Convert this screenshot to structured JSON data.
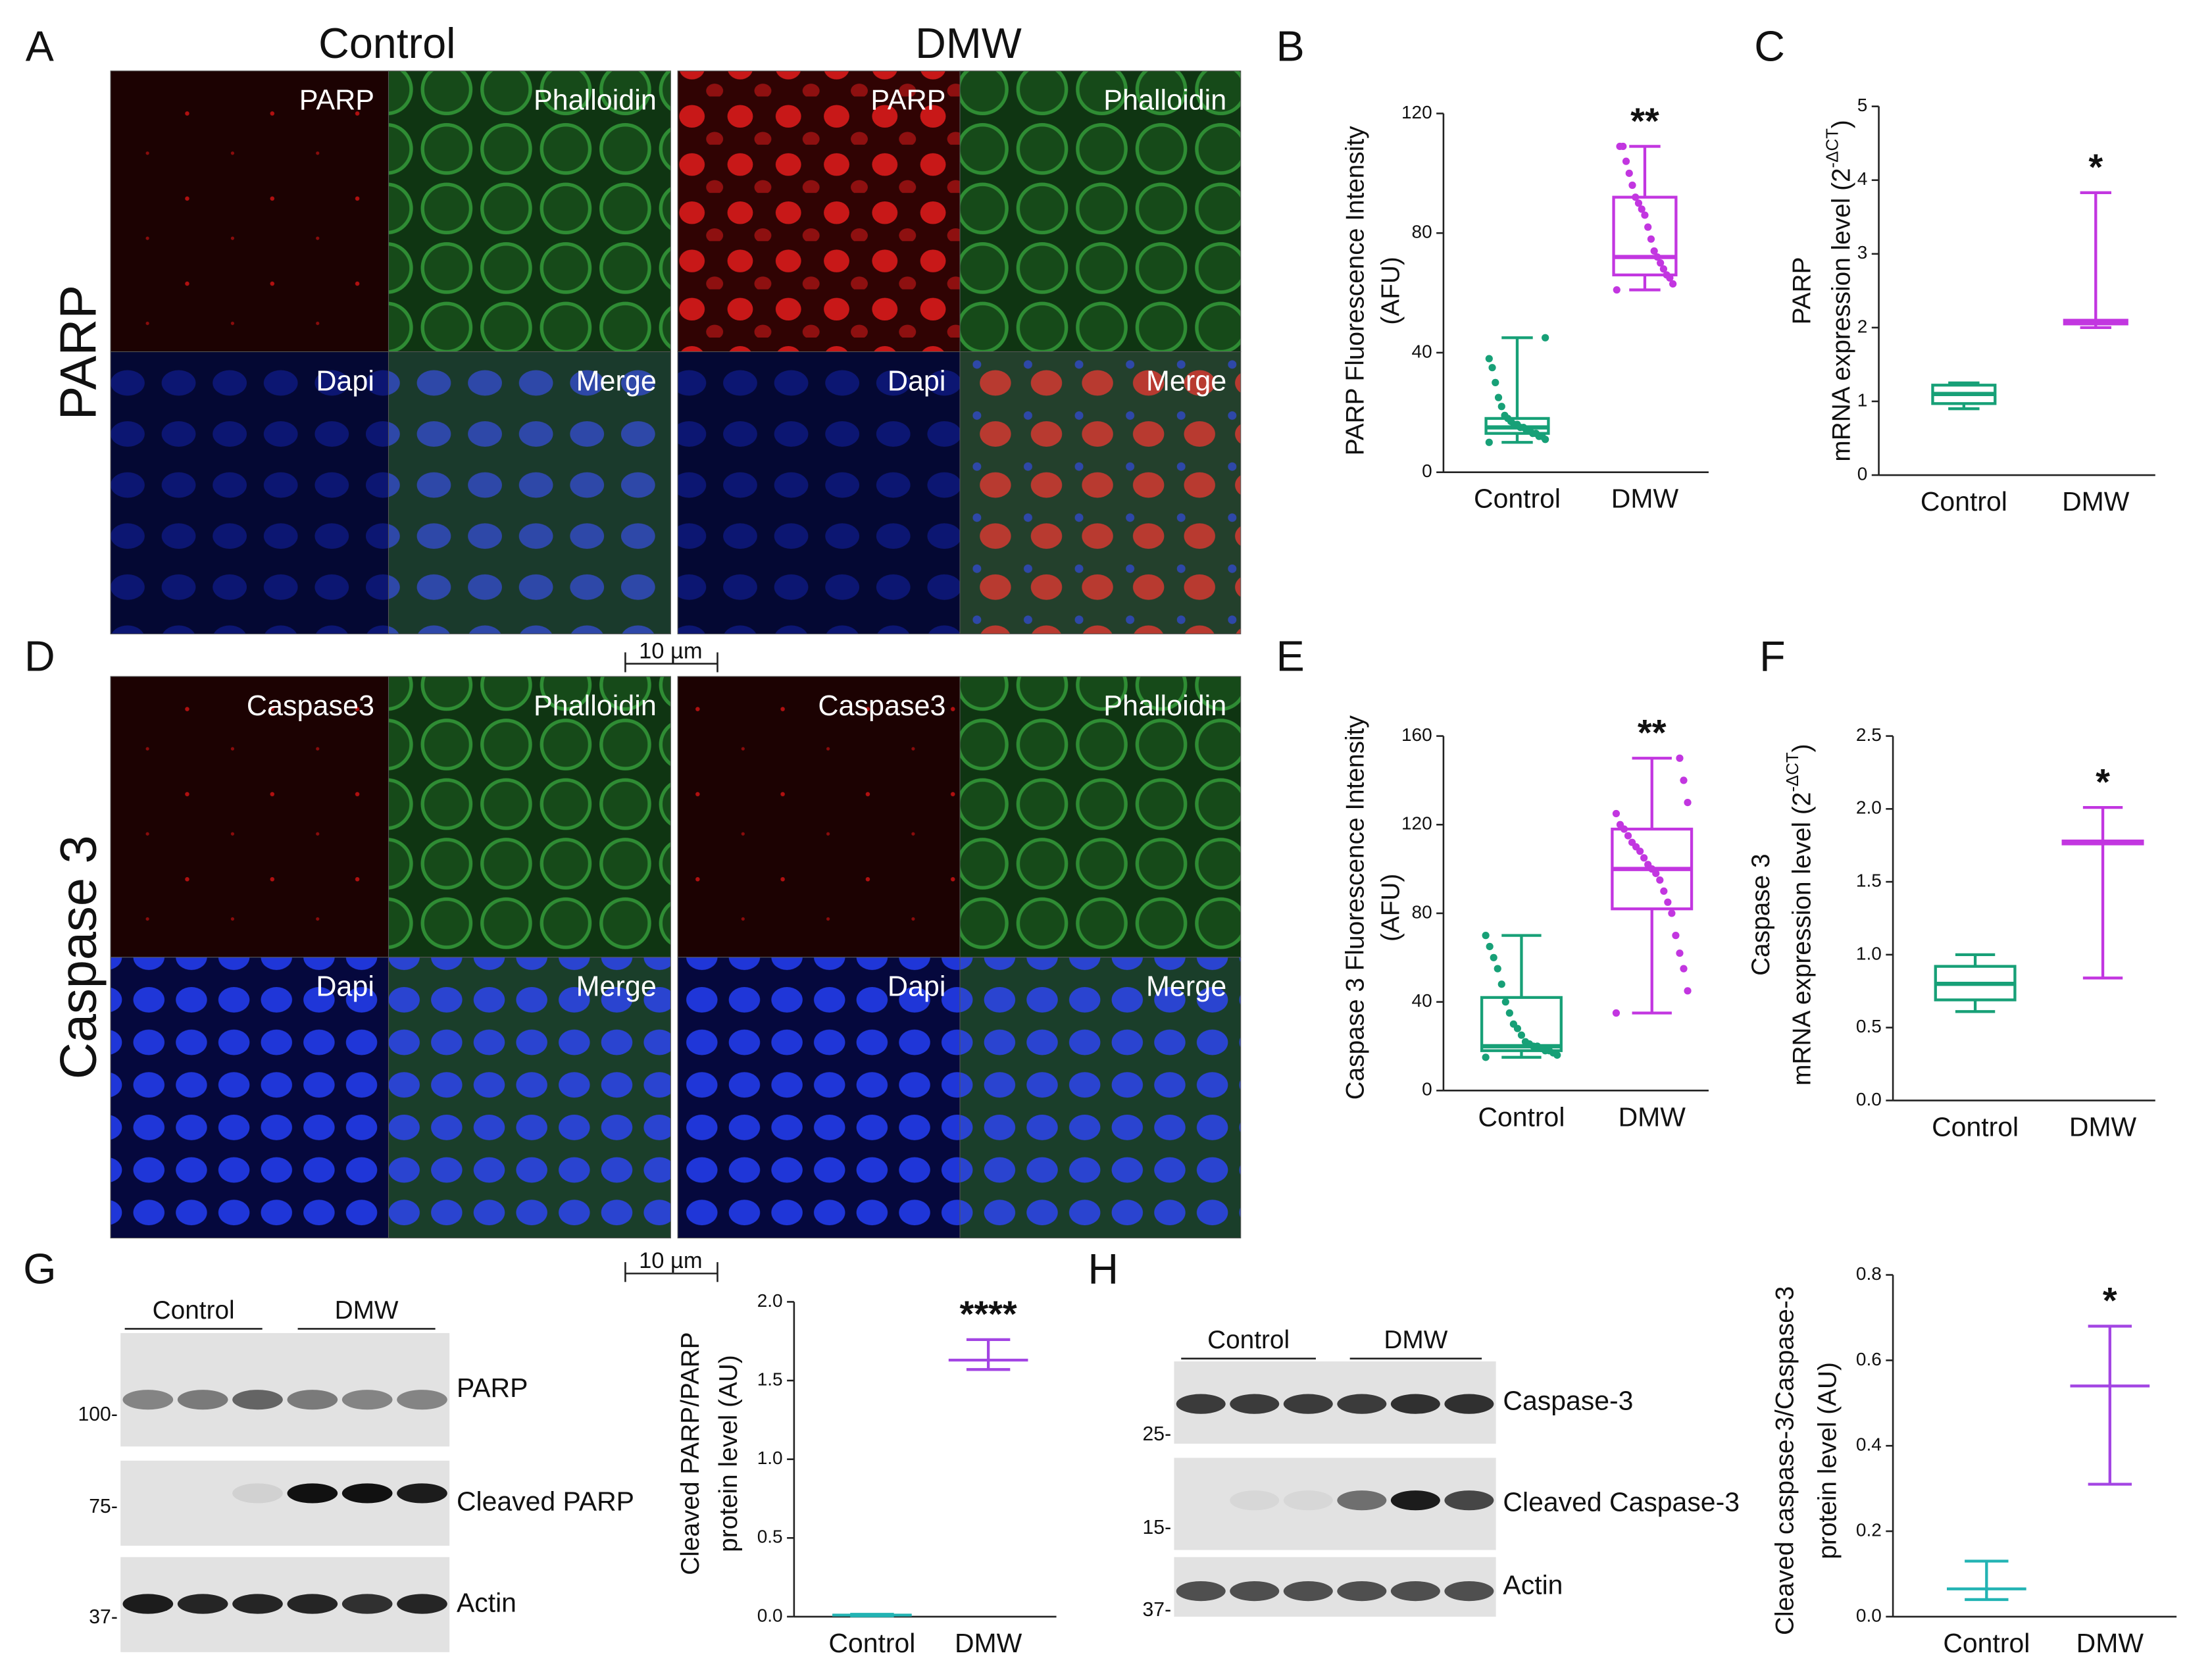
{
  "panel_letters": [
    "A",
    "B",
    "C",
    "D",
    "E",
    "F",
    "G",
    "H"
  ],
  "conditions": [
    "Control",
    "DMW"
  ],
  "micrographs": [
    {
      "label": "PARP",
      "panels": [
        [
          "PARP",
          "Phalloidin",
          "Dapi",
          "Merge"
        ],
        [
          "PARP",
          "Phalloidin",
          "Dapi",
          "Merge"
        ]
      ]
    },
    {
      "label": "Caspase 3",
      "panels": [
        [
          "Caspase3",
          "Phalloidin",
          "Dapi",
          "Merge"
        ],
        [
          "Caspase3",
          "Phalloidin",
          "Dapi",
          "Merge"
        ]
      ]
    }
  ],
  "scale_bar_label": "10 µm",
  "blots": [
    {
      "groups": [
        "Control",
        "DMW"
      ],
      "bands": [
        "PARP",
        "Cleaved PARP",
        "Actin"
      ],
      "markers": [
        "100-",
        "75-",
        "37-"
      ]
    },
    {
      "groups": [
        "Control",
        "DMW"
      ],
      "bands": [
        "Caspase-3",
        "Cleaved Caspase-3",
        "Actin"
      ],
      "markers": [
        "25-",
        "15-",
        "37-"
      ]
    }
  ],
  "chart_data": [
    {
      "type": "box",
      "y_label": [
        "PARP Fluorescence Intensity",
        "(AFU)"
      ],
      "categories": [
        "Control",
        "DMW"
      ],
      "ylim": [
        0,
        120
      ],
      "yticks": [
        0,
        40,
        80,
        120
      ],
      "annotation": "**",
      "series": [
        {
          "name": "Control",
          "color": "#17a077",
          "min": 10,
          "q1": 13,
          "median": 15,
          "q3": 18,
          "max": 45,
          "points": [
            10,
            11,
            12,
            12,
            13,
            13,
            14,
            14,
            15,
            15,
            16,
            16,
            17,
            18,
            19,
            22,
            25,
            30,
            35,
            38,
            45
          ]
        },
        {
          "name": "DMW",
          "color": "#c236e0",
          "min": 61,
          "q1": 66,
          "median": 72,
          "q3": 92,
          "max": 109,
          "points": [
            61,
            63,
            65,
            66,
            68,
            70,
            72,
            74,
            78,
            82,
            86,
            88,
            90,
            92,
            96,
            100,
            104,
            109,
            109
          ]
        }
      ]
    },
    {
      "type": "box",
      "y_label": [
        "PARP"
      ],
      "y_label_formula": [
        "mRNA expression level (2",
        "-ΔCT",
        ")"
      ],
      "categories": [
        "Control",
        "DMW"
      ],
      "ylim": [
        0,
        5
      ],
      "yticks": [
        0,
        1,
        2,
        3,
        4,
        5
      ],
      "annotation": "*",
      "series": [
        {
          "name": "Control",
          "color": "#17a077",
          "min": 0.9,
          "q1": 0.97,
          "median": 1.1,
          "q3": 1.22,
          "max": 1.25
        },
        {
          "name": "DMW",
          "color": "#c236e0",
          "min": 2.0,
          "q1": 2.05,
          "median": 2.08,
          "q3": 2.1,
          "max": 3.83
        }
      ]
    },
    {
      "type": "box",
      "y_label": [
        "Caspase 3 Fluorescence Intensity",
        "(AFU)"
      ],
      "categories": [
        "Control",
        "DMW"
      ],
      "ylim": [
        0,
        160
      ],
      "yticks": [
        0,
        40,
        80,
        120,
        160
      ],
      "annotation": "**",
      "series": [
        {
          "name": "Control",
          "color": "#17a077",
          "min": 15,
          "q1": 18,
          "median": 20,
          "q3": 42,
          "max": 70,
          "points": [
            15,
            16,
            17,
            18,
            18,
            19,
            20,
            20,
            21,
            22,
            25,
            28,
            30,
            35,
            40,
            48,
            55,
            60,
            65,
            70
          ]
        },
        {
          "name": "DMW",
          "color": "#c236e0",
          "min": 35,
          "q1": 82,
          "median": 100,
          "q3": 118,
          "max": 150,
          "points": [
            35,
            45,
            55,
            62,
            70,
            80,
            85,
            90,
            95,
            98,
            100,
            102,
            105,
            108,
            110,
            112,
            115,
            118,
            120,
            125,
            130,
            140,
            150
          ]
        }
      ]
    },
    {
      "type": "box",
      "y_label": [
        "Caspase 3"
      ],
      "y_label_formula": [
        "mRNA expression level (2",
        "-ΔCT",
        ")"
      ],
      "categories": [
        "Control",
        "DMW"
      ],
      "ylim": [
        0,
        2.5
      ],
      "yticks": [
        {
          "value": 0,
          "label": "0.0"
        },
        0.5,
        {
          "value": 1,
          "label": "1.0"
        },
        1.5,
        {
          "value": 2,
          "label": "2.0"
        },
        2.5
      ],
      "annotation": "*",
      "series": [
        {
          "name": "Control",
          "color": "#17a077",
          "min": 0.61,
          "q1": 0.69,
          "median": 0.8,
          "q3": 0.92,
          "max": 1.0
        },
        {
          "name": "DMW",
          "color": "#c236e0",
          "min": 0.84,
          "q1": 1.76,
          "median": 1.77,
          "q3": 1.78,
          "max": 2.01
        }
      ]
    },
    {
      "type": "errorbar",
      "y_label": [
        "Cleaved PARP/PARP",
        "protein level (AU)"
      ],
      "categories": [
        "Control",
        "DMW"
      ],
      "ylim": [
        0,
        2.0
      ],
      "yticks": [
        {
          "value": 0,
          "label": "0.0"
        },
        0.5,
        {
          "value": 1,
          "label": "1.0"
        },
        1.5,
        {
          "value": 2,
          "label": "2.0"
        }
      ],
      "annotation": "****",
      "series": [
        {
          "name": "Control",
          "color": "#22b3b3",
          "mean": 0.01,
          "low": 0.005,
          "high": 0.015
        },
        {
          "name": "DMW",
          "color": "#a345e3",
          "mean": 1.63,
          "low": 1.57,
          "high": 1.76
        }
      ]
    },
    {
      "type": "errorbar",
      "y_label": [
        "Cleaved caspase-3/Caspase-3",
        "protein level (AU)"
      ],
      "categories": [
        "Control",
        "DMW"
      ],
      "ylim": [
        0,
        0.8
      ],
      "yticks": [
        {
          "value": 0,
          "label": "0.0"
        },
        0.2,
        0.4,
        0.6,
        0.8
      ],
      "annotation": "*",
      "series": [
        {
          "name": "Control",
          "color": "#22b3b3",
          "mean": 0.065,
          "low": 0.04,
          "high": 0.13
        },
        {
          "name": "DMW",
          "color": "#a345e3",
          "mean": 0.54,
          "low": 0.31,
          "high": 0.68
        }
      ]
    }
  ]
}
